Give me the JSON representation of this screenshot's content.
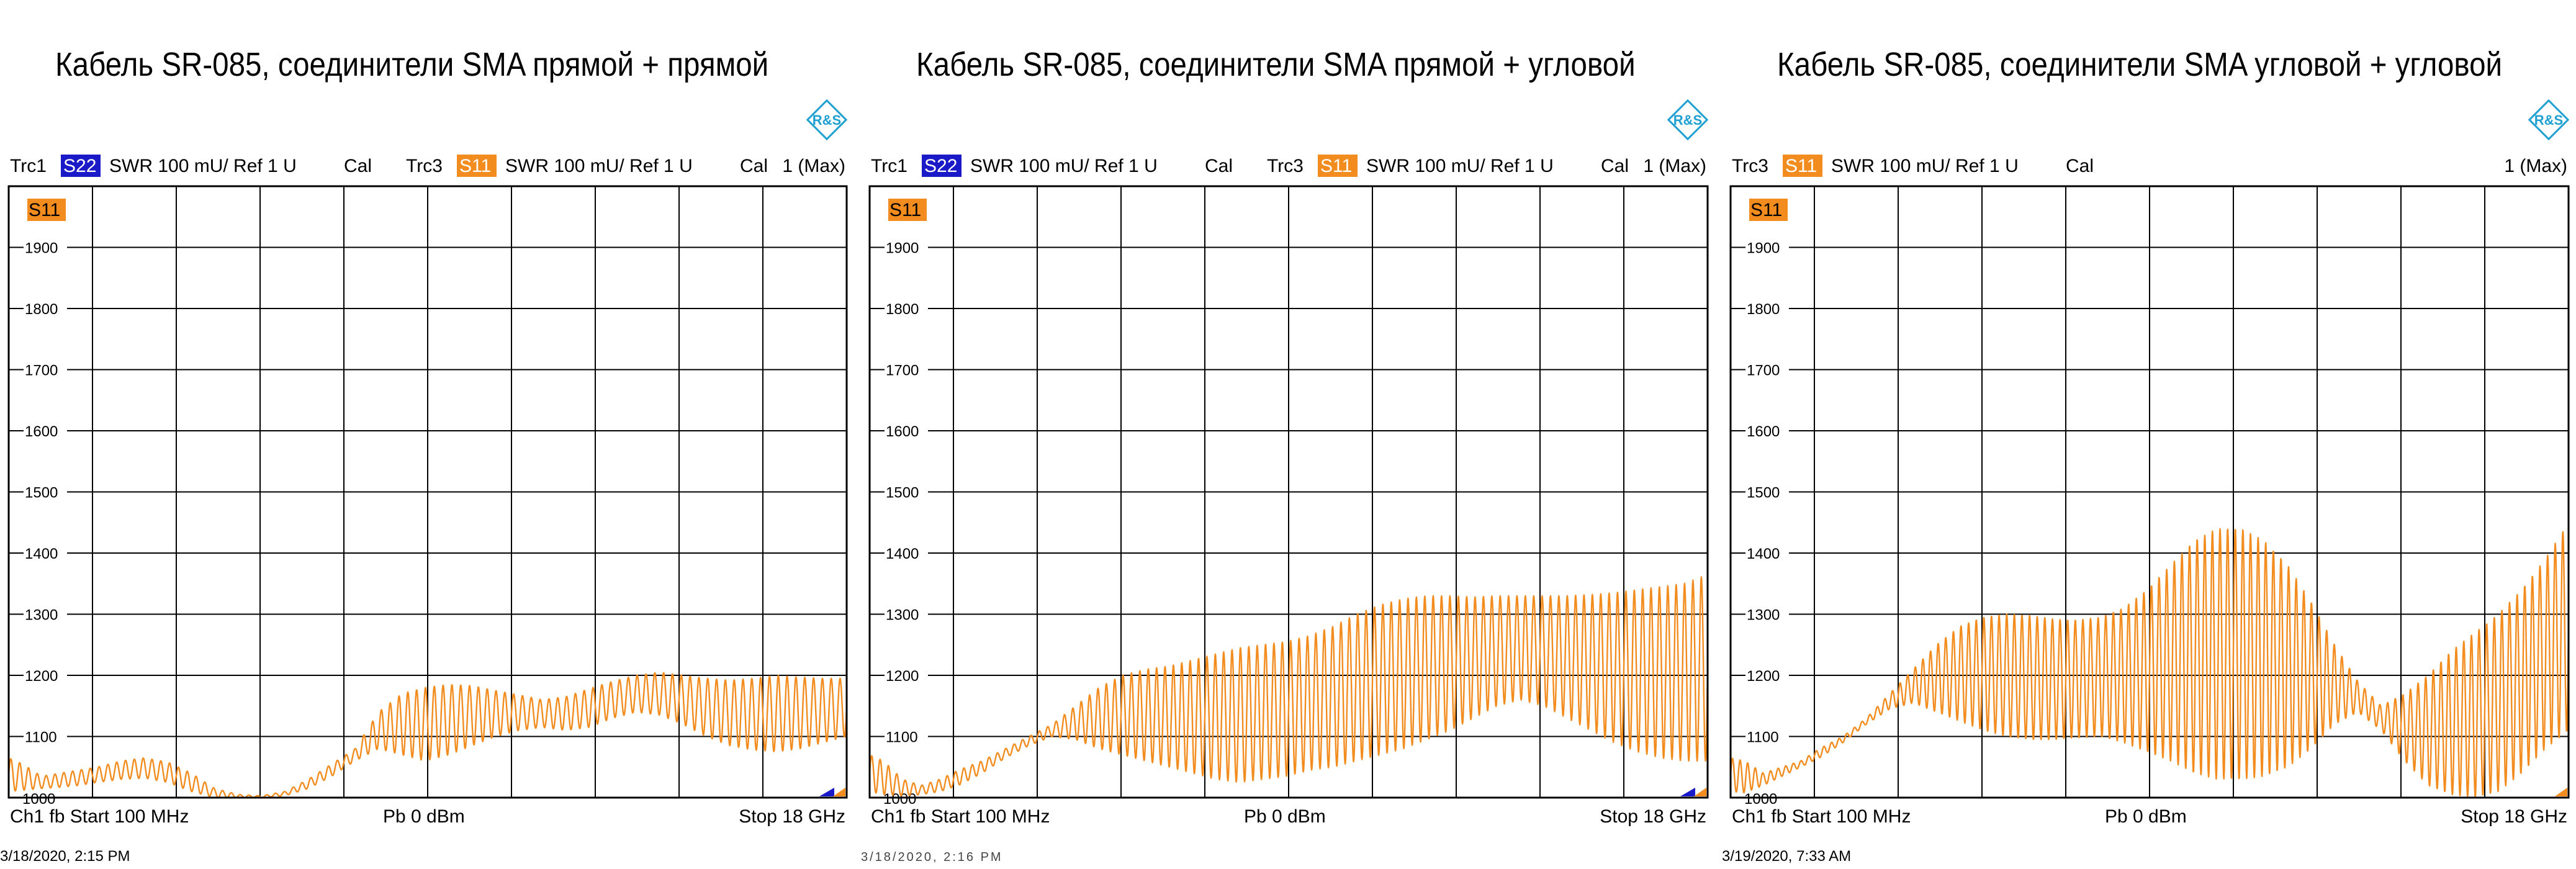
{
  "chart_data": [
    {
      "type": "line",
      "title": "Кабель SR-085, соединители SMA прямой + прямой",
      "header": [
        {
          "trc": "Trc1",
          "badge": "S22",
          "badge_color": "#1a1ac8",
          "text": "SWR  100 mU/  Ref 1 U",
          "cal": "Cal"
        },
        {
          "trc": "Trc3",
          "badge": "S11",
          "badge_color": "#f28c1e",
          "text": "SWR  100 mU/  Ref 1 U",
          "cal": "Cal"
        }
      ],
      "marker_info": "1 (Max)",
      "trace_label": "S11",
      "ylim": [
        1000,
        2000
      ],
      "y_ticks": [
        1900,
        1800,
        1700,
        1600,
        1500,
        1400,
        1300,
        1200,
        1100,
        1000
      ],
      "xlim": [
        0.1,
        18
      ],
      "grid": true,
      "footer": {
        "left": "Ch1  fb  Start  100 MHz",
        "center": "Pb   0 dBm",
        "right": "Stop  18 GHz"
      },
      "timestamp": "3/18/2020, 2:15 PM",
      "series": [
        {
          "color": "#f28c1e",
          "ripple_cycles": 95,
          "x": [
            0.1,
            0.4,
            0.8,
            1.2,
            1.6,
            2.0,
            2.5,
            3.0,
            3.5,
            4.0,
            4.5,
            5.0,
            5.5,
            6.0,
            6.5,
            7.0,
            7.5,
            8.0,
            8.5,
            9.0,
            9.5,
            10.0,
            10.5,
            11.0,
            11.5,
            12.0,
            12.5,
            13.0,
            13.5,
            14.0,
            14.5,
            15.0,
            15.5,
            16.0,
            16.5,
            17.0,
            17.5,
            18.0
          ],
          "upper": [
            1065,
            1055,
            1035,
            1040,
            1045,
            1050,
            1060,
            1065,
            1058,
            1040,
            1015,
            1005,
            1003,
            1010,
            1030,
            1055,
            1080,
            1140,
            1170,
            1180,
            1185,
            1183,
            1175,
            1168,
            1160,
            1165,
            1178,
            1190,
            1200,
            1205,
            1200,
            1195,
            1192,
            1195,
            1200,
            1197,
            1195,
            1195
          ],
          "lower": [
            1010,
            1012,
            1015,
            1017,
            1020,
            1025,
            1030,
            1032,
            1025,
            1010,
            1000,
            1000,
            1000,
            1003,
            1015,
            1035,
            1060,
            1080,
            1070,
            1060,
            1070,
            1085,
            1100,
            1110,
            1115,
            1110,
            1115,
            1130,
            1140,
            1135,
            1120,
            1100,
            1085,
            1078,
            1075,
            1080,
            1090,
            1100
          ]
        }
      ]
    },
    {
      "type": "line",
      "title": "Кабель SR-085, соединители SMA прямой + угловой",
      "header": [
        {
          "trc": "Trc1",
          "badge": "S22",
          "badge_color": "#1a1ac8",
          "text": "SWR  100 mU/  Ref 1 U",
          "cal": "Cal"
        },
        {
          "trc": "Trc3",
          "badge": "S11",
          "badge_color": "#f28c1e",
          "text": "SWR  100 mU/  Ref 1 U",
          "cal": "Cal"
        }
      ],
      "marker_info": "1 (Max)",
      "trace_label": "S11",
      "ylim": [
        1000,
        2000
      ],
      "y_ticks": [
        1900,
        1800,
        1700,
        1600,
        1500,
        1400,
        1300,
        1200,
        1100,
        1000
      ],
      "xlim": [
        0.1,
        18
      ],
      "grid": true,
      "footer": {
        "left": "Ch1  fb  Start  100 MHz",
        "center": "Pb   0 dBm",
        "right": "Stop  18 GHz"
      },
      "timestamp": "3/18/2020, 2:16 PM",
      "series": [
        {
          "color": "#f28c1e",
          "ripple_cycles": 100,
          "x": [
            0.1,
            0.4,
            0.8,
            1.2,
            1.6,
            2.0,
            2.5,
            3.0,
            3.5,
            4.0,
            4.5,
            5.0,
            5.5,
            6.0,
            6.5,
            7.0,
            7.5,
            8.0,
            8.5,
            9.0,
            9.5,
            10.0,
            10.5,
            11.0,
            11.5,
            12.0,
            12.5,
            13.0,
            13.5,
            14.0,
            14.5,
            15.0,
            15.5,
            16.0,
            16.5,
            17.0,
            17.5,
            18.0
          ],
          "upper": [
            1070,
            1060,
            1030,
            1020,
            1030,
            1045,
            1060,
            1080,
            1100,
            1120,
            1150,
            1180,
            1200,
            1210,
            1215,
            1225,
            1235,
            1245,
            1250,
            1255,
            1265,
            1280,
            1300,
            1315,
            1325,
            1330,
            1330,
            1328,
            1330,
            1330,
            1330,
            1330,
            1332,
            1335,
            1340,
            1345,
            1350,
            1365
          ],
          "lower": [
            1010,
            1005,
            1003,
            1005,
            1010,
            1020,
            1040,
            1065,
            1085,
            1100,
            1095,
            1080,
            1070,
            1060,
            1050,
            1040,
            1030,
            1025,
            1030,
            1035,
            1045,
            1050,
            1060,
            1070,
            1080,
            1095,
            1110,
            1130,
            1150,
            1160,
            1150,
            1130,
            1110,
            1090,
            1075,
            1065,
            1060,
            1060
          ]
        }
      ]
    },
    {
      "type": "line",
      "title": "Кабель SR-085, соединители SMA угловой + угловой",
      "header": [
        {
          "trc": "Trc3",
          "badge": "S11",
          "badge_color": "#f28c1e",
          "text": "SWR  100 mU/  Ref 1 U",
          "cal": "Cal"
        }
      ],
      "marker_info": "1 (Max)",
      "trace_label": "S11",
      "ylim": [
        1000,
        2000
      ],
      "y_ticks": [
        1900,
        1800,
        1700,
        1600,
        1500,
        1400,
        1300,
        1200,
        1100,
        1000
      ],
      "xlim": [
        0.1,
        18
      ],
      "grid": true,
      "footer": {
        "left": "Ch1  fb  Start  100 MHz",
        "center": "Pb   0 dBm",
        "right": "Stop  18 GHz"
      },
      "timestamp": "3/19/2020, 7:33 AM",
      "series": [
        {
          "color": "#f28c1e",
          "ripple_cycles": 110,
          "x": [
            0.1,
            0.4,
            0.8,
            1.2,
            1.6,
            2.0,
            2.5,
            3.0,
            3.5,
            4.0,
            4.5,
            5.0,
            5.5,
            6.0,
            6.5,
            7.0,
            7.5,
            8.0,
            8.5,
            9.0,
            9.5,
            10.0,
            10.5,
            11.0,
            11.5,
            12.0,
            12.5,
            13.0,
            13.5,
            14.0,
            14.5,
            15.0,
            15.5,
            16.0,
            16.5,
            17.0,
            17.5,
            18.0
          ],
          "upper": [
            1065,
            1060,
            1040,
            1050,
            1060,
            1080,
            1100,
            1130,
            1170,
            1210,
            1250,
            1280,
            1295,
            1300,
            1298,
            1292,
            1290,
            1295,
            1310,
            1340,
            1380,
            1420,
            1440,
            1440,
            1420,
            1380,
            1320,
            1250,
            1190,
            1150,
            1170,
            1200,
            1240,
            1270,
            1300,
            1340,
            1390,
            1450
          ],
          "lower": [
            1010,
            1008,
            1020,
            1035,
            1050,
            1065,
            1090,
            1120,
            1145,
            1155,
            1140,
            1125,
            1110,
            1100,
            1095,
            1095,
            1098,
            1100,
            1090,
            1075,
            1060,
            1040,
            1030,
            1030,
            1035,
            1050,
            1080,
            1120,
            1140,
            1110,
            1060,
            1020,
            1005,
            1000,
            1010,
            1040,
            1080,
            1110
          ]
        }
      ]
    }
  ]
}
